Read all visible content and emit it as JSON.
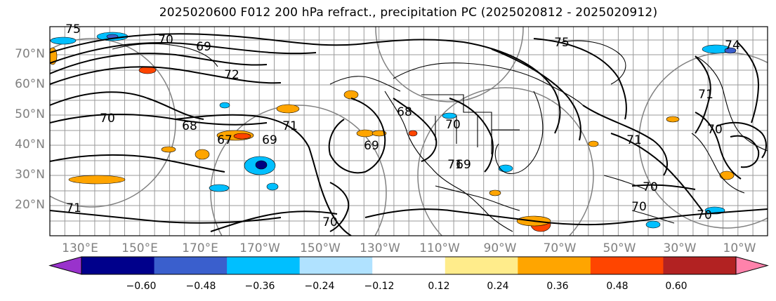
{
  "title": "2025020600 F012 200 hPa refract., precipitation PC (2025020812 - 2025020912)",
  "lat_labels": [
    "70°N",
    "60°N",
    "50°N",
    "40°N",
    "30°N",
    "20°N"
  ],
  "lon_labels": [
    "130°E",
    "150°E",
    "170°E",
    "170°W",
    "150°W",
    "130°W",
    "110°W",
    "90°W",
    "70°W",
    "50°W",
    "30°W",
    "10°W"
  ],
  "colorbar": {
    "tick_labels": [
      "−0.60",
      "−0.48",
      "−0.36",
      "−0.24",
      "−0.12",
      "0.12",
      "0.24",
      "0.36",
      "0.48",
      "0.60"
    ],
    "colors": [
      "#9932cc",
      "#00008b",
      "#3a5fcd",
      "#00bfff",
      "#b0e2ff",
      "#ffffff",
      "#ffec8b",
      "#ffa500",
      "#ff4500",
      "#b22222",
      "#ff82ab"
    ]
  },
  "contour_labels": [
    "75",
    "70",
    "69",
    "72",
    "75",
    "74",
    "70",
    "68",
    "67",
    "69",
    "71",
    "69",
    "68",
    "70",
    "71",
    "69",
    "70",
    "71",
    "70",
    "70",
    "70",
    "71",
    "70",
    "71"
  ],
  "legend_colors": {
    "contour": "#000000",
    "graticule": "#808080",
    "frame": "#000000"
  }
}
